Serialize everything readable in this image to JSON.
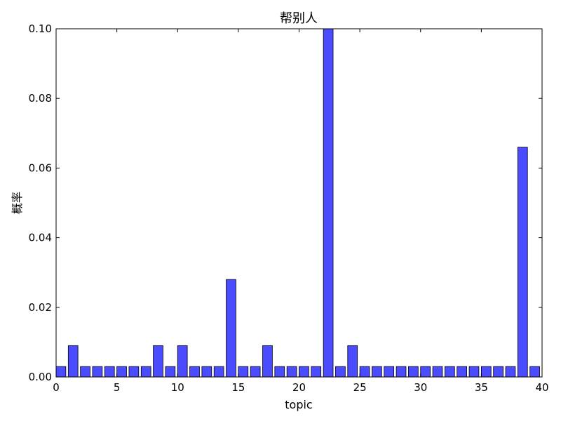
{
  "chart_data": {
    "type": "bar",
    "title": "帮别人",
    "xlabel": "topic",
    "ylabel": "概率",
    "xlim": [
      0,
      40
    ],
    "ylim": [
      0,
      0.1
    ],
    "xticks": [
      0,
      5,
      10,
      15,
      20,
      25,
      30,
      35,
      40
    ],
    "yticks": [
      "0.00",
      "0.02",
      "0.04",
      "0.06",
      "0.08",
      "0.10"
    ],
    "grid": false,
    "bar_color": "#4b4bff",
    "bar_edge_color": "#000000",
    "categories": [
      0,
      1,
      2,
      3,
      4,
      5,
      6,
      7,
      8,
      9,
      10,
      11,
      12,
      13,
      14,
      15,
      16,
      17,
      18,
      19,
      20,
      21,
      22,
      23,
      24,
      25,
      26,
      27,
      28,
      29,
      30,
      31,
      32,
      33,
      34,
      35,
      36,
      37,
      38,
      39
    ],
    "values": [
      0.003,
      0.009,
      0.003,
      0.003,
      0.003,
      0.003,
      0.003,
      0.003,
      0.009,
      0.003,
      0.009,
      0.003,
      0.003,
      0.003,
      0.028,
      0.003,
      0.003,
      0.009,
      0.003,
      0.003,
      0.003,
      0.003,
      0.1,
      0.003,
      0.009,
      0.003,
      0.003,
      0.003,
      0.003,
      0.003,
      0.003,
      0.003,
      0.003,
      0.003,
      0.003,
      0.003,
      0.003,
      0.003,
      0.066,
      0.003
    ]
  }
}
